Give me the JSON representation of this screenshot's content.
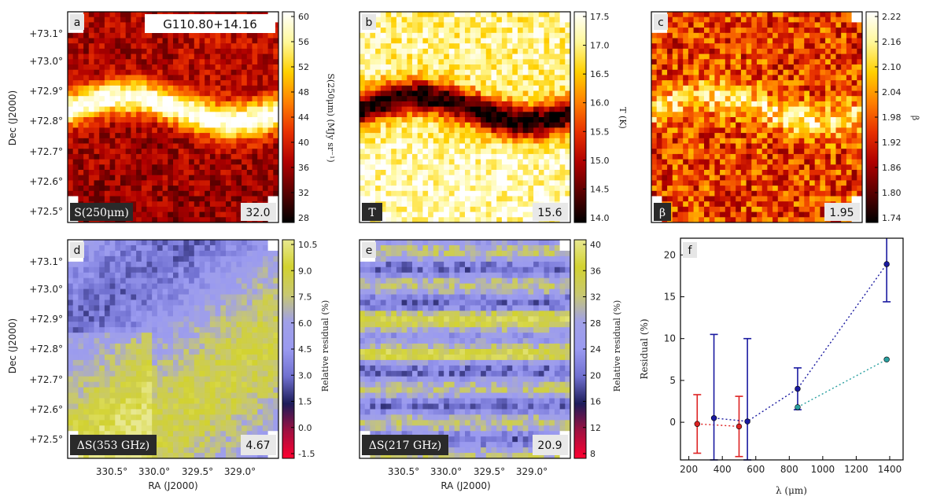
{
  "figure": {
    "axes": {
      "dec_label": "Dec (J2000)",
      "ra_label": "RA (J2000)",
      "dec_ticks": [
        "+73.1°",
        "+73.0°",
        "+72.9°",
        "+72.8°",
        "+72.7°",
        "+72.6°",
        "+72.5°"
      ],
      "ra_ticks": [
        "330.5°",
        "330.0°",
        "329.5°",
        "329.0°"
      ]
    },
    "panels": [
      {
        "id": "a",
        "letter": "a",
        "map_label": "S(250μm)",
        "stat": "32.0",
        "title": "G110.80+14.16",
        "colormap": "hot",
        "pattern": "intensity"
      },
      {
        "id": "b",
        "letter": "b",
        "map_label": "T",
        "stat": "15.6",
        "colormap": "hot",
        "pattern": "temperature"
      },
      {
        "id": "c",
        "letter": "c",
        "map_label": "β",
        "stat": "1.95",
        "colormap": "hot",
        "pattern": "beta"
      },
      {
        "id": "d",
        "letter": "d",
        "map_label": "ΔS(353 GHz)",
        "stat": "4.67",
        "colormap": "residual",
        "pattern": "smooth-residual"
      },
      {
        "id": "e",
        "letter": "e",
        "map_label": "ΔS(217 GHz)",
        "stat": "20.9",
        "colormap": "residual",
        "pattern": "striped-residual"
      }
    ],
    "colorbars": [
      {
        "panel": "a",
        "label": "S(250μm) (MJy sr⁻¹)",
        "ticks": [
          "60",
          "56",
          "52",
          "48",
          "44",
          "40",
          "36",
          "32",
          "28"
        ],
        "colormap": "hot"
      },
      {
        "panel": "b",
        "label": "T (K)",
        "ticks": [
          "17.5",
          "17.0",
          "16.5",
          "16.0",
          "15.5",
          "15.0",
          "14.5",
          "14.0"
        ],
        "colormap": "hot"
      },
      {
        "panel": "c",
        "label": "β",
        "ticks": [
          "2.22",
          "2.16",
          "2.10",
          "2.04",
          "1.98",
          "1.92",
          "1.86",
          "1.80",
          "1.74"
        ],
        "colormap": "hot"
      },
      {
        "panel": "d",
        "label": "Relative residual (%)",
        "ticks": [
          "10.5",
          "9.0",
          "7.5",
          "6.0",
          "4.5",
          "3.0",
          "1.5",
          "0.0",
          "-1.5"
        ],
        "colormap": "residual"
      },
      {
        "panel": "e",
        "label": "Relative residual (%)",
        "ticks": [
          "40",
          "36",
          "32",
          "28",
          "24",
          "20",
          "16",
          "12",
          "8"
        ],
        "colormap": "residual"
      }
    ],
    "colors": {
      "hot": [
        "#000000",
        "#5a0000",
        "#b00000",
        "#e83000",
        "#ff8000",
        "#ffd000",
        "#fff89a",
        "#ffffff"
      ],
      "residual": [
        "#ff0030",
        "#a01040",
        "#1c1c5a",
        "#7070d0",
        "#9a9af0",
        "#a0a0e8",
        "#c8c870",
        "#d2d230",
        "#e8e890"
      ],
      "series_red": "#dd2222",
      "series_blue": "#1a1aa0",
      "series_cyan": "#2aa0a0"
    }
  },
  "chart_data": {
    "type": "scatter",
    "panel": "f",
    "letter": "f",
    "xlabel": "λ (μm)",
    "ylabel": "Residual (%)",
    "xlim": [
      150,
      1480
    ],
    "ylim": [
      -4.5,
      22
    ],
    "xticks": [
      200,
      400,
      600,
      800,
      1000,
      1200,
      1400
    ],
    "yticks": [
      0,
      5,
      10,
      15,
      20
    ],
    "series": [
      {
        "color": "red",
        "connect": true,
        "points": [
          {
            "x": 250,
            "y": -0.2,
            "err": 3.5
          },
          {
            "x": 500,
            "y": -0.5,
            "err": 3.6
          }
        ]
      },
      {
        "color": "blue",
        "connect": true,
        "points": [
          {
            "x": 350,
            "y": 0.5,
            "err": 10.0
          },
          {
            "x": 550,
            "y": 0.1,
            "err": 9.9
          },
          {
            "x": 850,
            "y": 4.0,
            "err": 2.5
          },
          {
            "x": 1382,
            "y": 18.9,
            "err": 4.5
          }
        ]
      },
      {
        "color": "cyan",
        "connect": true,
        "points": [
          {
            "x": 850,
            "y": 1.8,
            "err": 0
          },
          {
            "x": 1382,
            "y": 7.5,
            "err": 0
          }
        ]
      }
    ]
  }
}
